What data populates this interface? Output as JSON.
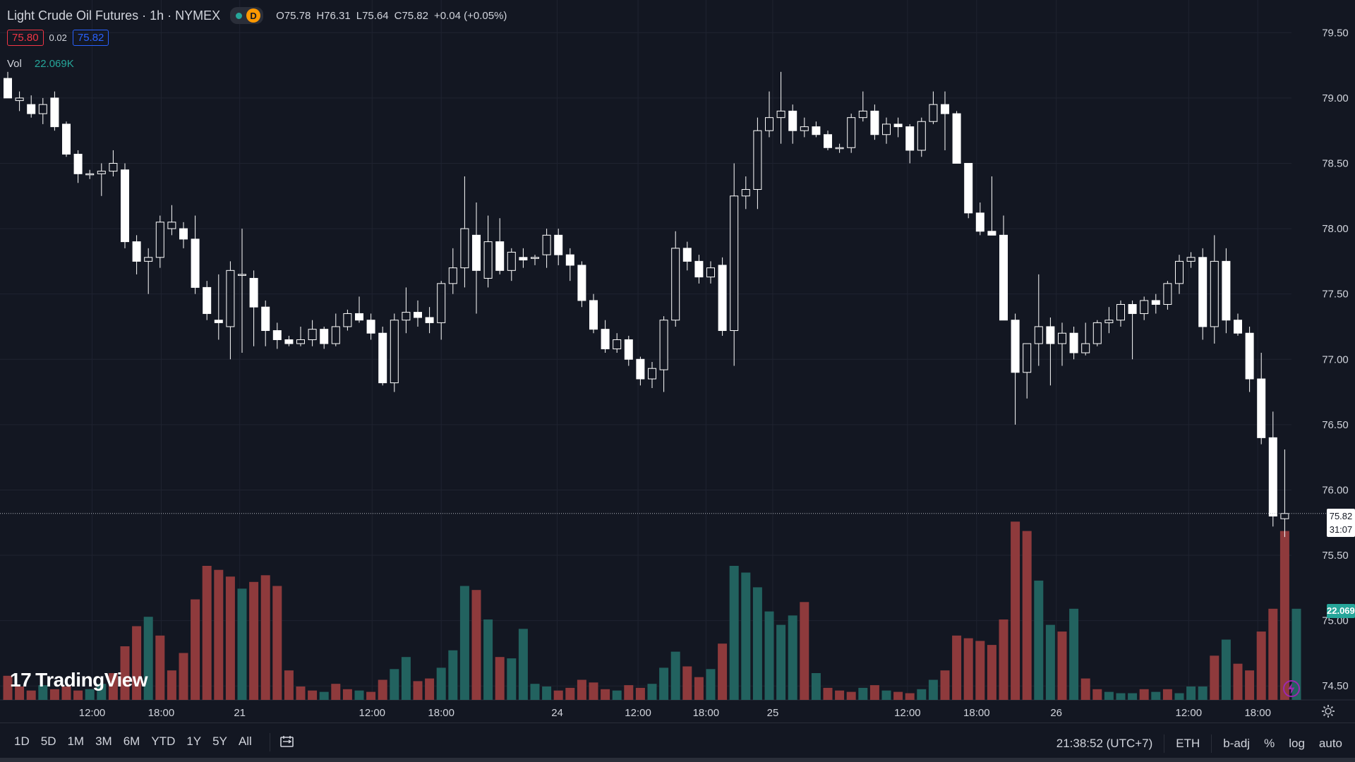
{
  "header": {
    "title": "Light Crude Oil Futures · 1h · NYMEX",
    "status_letter": "D",
    "ohlc": {
      "o_label": "O",
      "o": "75.78",
      "h_label": "H",
      "h": "76.31",
      "l_label": "L",
      "l": "75.64",
      "c_label": "C",
      "c": "75.82",
      "change": "+0.04 (+0.05%)"
    },
    "bid": "75.80",
    "spread": "0.02",
    "ask": "75.82",
    "vol_label": "Vol",
    "vol_value": "22.069K"
  },
  "colors": {
    "background": "#131722",
    "grid": "#1f2330",
    "up_candle": "#ffffff",
    "down_candle": "#ffffff",
    "vol_up": "#22625f",
    "vol_down": "#8e3a3c",
    "text": "#d1d4dc",
    "accent_teal": "#26a69a"
  },
  "logo": {
    "text": "TradingView",
    "mark": "17"
  },
  "price_tag": {
    "price": "75.82",
    "countdown": "31:07"
  },
  "volume_tag": "22.069K",
  "bottom_bar": {
    "ranges": [
      "1D",
      "5D",
      "1M",
      "3M",
      "6M",
      "YTD",
      "1Y",
      "5Y",
      "All"
    ],
    "time": "21:38:52 (UTC+7)",
    "session": "ETH",
    "badj": "b-adj",
    "percent": "%",
    "log": "log",
    "auto": "auto"
  },
  "chart_data": {
    "type": "candlestick",
    "title": "Light Crude Oil Futures · 1h · NYMEX",
    "y_axis_ticks": [
      "79.50",
      "79.00",
      "78.50",
      "78.00",
      "77.50",
      "77.00",
      "76.50",
      "76.00",
      "75.50",
      "75.00",
      "74.50"
    ],
    "ylim": [
      74.35,
      79.75
    ],
    "x_axis_ticks": [
      "12:00",
      "18:00",
      "21",
      "12:00",
      "18:00",
      "24",
      "12:00",
      "18:00",
      "25",
      "12:00",
      "18:00",
      "26",
      "12:00",
      "18:00"
    ],
    "x_tick_bar_index": [
      7.2,
      13.1,
      19.8,
      31.1,
      37.0,
      46.9,
      53.8,
      59.6,
      65.3,
      76.8,
      82.7,
      89.5,
      100.8,
      106.7
    ],
    "last_price": 75.82,
    "grid": true,
    "candles": [
      {
        "o": 79.15,
        "h": 79.2,
        "l": 79.0,
        "c": 79.0
      },
      {
        "o": 78.98,
        "h": 79.05,
        "l": 78.9,
        "c": 79.0
      },
      {
        "o": 78.95,
        "h": 79.02,
        "l": 78.85,
        "c": 78.88
      },
      {
        "o": 78.88,
        "h": 79.0,
        "l": 78.8,
        "c": 78.95
      },
      {
        "o": 79.0,
        "h": 79.05,
        "l": 78.75,
        "c": 78.78
      },
      {
        "o": 78.8,
        "h": 78.82,
        "l": 78.55,
        "c": 78.57
      },
      {
        "o": 78.57,
        "h": 78.6,
        "l": 78.35,
        "c": 78.42
      },
      {
        "o": 78.42,
        "h": 78.45,
        "l": 78.38,
        "c": 78.42
      },
      {
        "o": 78.42,
        "h": 78.5,
        "l": 78.25,
        "c": 78.44
      },
      {
        "o": 78.44,
        "h": 78.6,
        "l": 78.4,
        "c": 78.5
      },
      {
        "o": 78.45,
        "h": 78.5,
        "l": 77.85,
        "c": 77.9
      },
      {
        "o": 77.9,
        "h": 77.95,
        "l": 77.65,
        "c": 77.75
      },
      {
        "o": 77.75,
        "h": 77.85,
        "l": 77.5,
        "c": 77.78
      },
      {
        "o": 77.78,
        "h": 78.1,
        "l": 77.7,
        "c": 78.05
      },
      {
        "o": 78.0,
        "h": 78.18,
        "l": 77.95,
        "c": 78.05
      },
      {
        "o": 78.0,
        "h": 78.05,
        "l": 77.85,
        "c": 77.92
      },
      {
        "o": 77.92,
        "h": 78.1,
        "l": 77.5,
        "c": 77.55
      },
      {
        "o": 77.55,
        "h": 77.6,
        "l": 77.3,
        "c": 77.35
      },
      {
        "o": 77.3,
        "h": 77.65,
        "l": 77.15,
        "c": 77.28
      },
      {
        "o": 77.25,
        "h": 77.75,
        "l": 77.0,
        "c": 77.68
      },
      {
        "o": 77.65,
        "h": 78.0,
        "l": 77.05,
        "c": 77.65
      },
      {
        "o": 77.62,
        "h": 77.68,
        "l": 77.1,
        "c": 77.4
      },
      {
        "o": 77.4,
        "h": 77.45,
        "l": 77.1,
        "c": 77.22
      },
      {
        "o": 77.22,
        "h": 77.28,
        "l": 77.08,
        "c": 77.15
      },
      {
        "o": 77.15,
        "h": 77.18,
        "l": 77.1,
        "c": 77.12
      },
      {
        "o": 77.12,
        "h": 77.25,
        "l": 77.1,
        "c": 77.15
      },
      {
        "o": 77.15,
        "h": 77.3,
        "l": 77.1,
        "c": 77.23
      },
      {
        "o": 77.23,
        "h": 77.25,
        "l": 77.08,
        "c": 77.12
      },
      {
        "o": 77.12,
        "h": 77.35,
        "l": 77.1,
        "c": 77.25
      },
      {
        "o": 77.25,
        "h": 77.38,
        "l": 77.22,
        "c": 77.35
      },
      {
        "o": 77.35,
        "h": 77.48,
        "l": 77.28,
        "c": 77.3
      },
      {
        "o": 77.3,
        "h": 77.35,
        "l": 77.15,
        "c": 77.2
      },
      {
        "o": 77.2,
        "h": 77.25,
        "l": 76.8,
        "c": 76.82
      },
      {
        "o": 76.82,
        "h": 77.35,
        "l": 76.75,
        "c": 77.3
      },
      {
        "o": 77.3,
        "h": 77.55,
        "l": 77.2,
        "c": 77.36
      },
      {
        "o": 77.36,
        "h": 77.45,
        "l": 77.25,
        "c": 77.32
      },
      {
        "o": 77.32,
        "h": 77.4,
        "l": 77.2,
        "c": 77.28
      },
      {
        "o": 77.28,
        "h": 77.6,
        "l": 77.15,
        "c": 77.58
      },
      {
        "o": 77.58,
        "h": 77.85,
        "l": 77.5,
        "c": 77.7
      },
      {
        "o": 77.7,
        "h": 78.4,
        "l": 77.55,
        "c": 78.0
      },
      {
        "o": 77.95,
        "h": 78.2,
        "l": 77.35,
        "c": 77.68
      },
      {
        "o": 77.62,
        "h": 78.1,
        "l": 77.55,
        "c": 77.9
      },
      {
        "o": 77.9,
        "h": 78.08,
        "l": 77.65,
        "c": 77.68
      },
      {
        "o": 77.68,
        "h": 77.85,
        "l": 77.6,
        "c": 77.82
      },
      {
        "o": 77.78,
        "h": 77.85,
        "l": 77.7,
        "c": 77.76
      },
      {
        "o": 77.78,
        "h": 77.8,
        "l": 77.72,
        "c": 77.78
      },
      {
        "o": 77.8,
        "h": 78.0,
        "l": 77.7,
        "c": 77.95
      },
      {
        "o": 77.95,
        "h": 78.0,
        "l": 77.72,
        "c": 77.8
      },
      {
        "o": 77.8,
        "h": 77.85,
        "l": 77.6,
        "c": 77.72
      },
      {
        "o": 77.72,
        "h": 77.75,
        "l": 77.4,
        "c": 77.45
      },
      {
        "o": 77.45,
        "h": 77.5,
        "l": 77.2,
        "c": 77.23
      },
      {
        "o": 77.23,
        "h": 77.3,
        "l": 77.05,
        "c": 77.08
      },
      {
        "o": 77.08,
        "h": 77.2,
        "l": 77.05,
        "c": 77.15
      },
      {
        "o": 77.15,
        "h": 77.18,
        "l": 76.95,
        "c": 77.0
      },
      {
        "o": 77.0,
        "h": 77.02,
        "l": 76.8,
        "c": 76.85
      },
      {
        "o": 76.85,
        "h": 76.98,
        "l": 76.78,
        "c": 76.93
      },
      {
        "o": 76.92,
        "h": 77.33,
        "l": 76.75,
        "c": 77.3
      },
      {
        "o": 77.3,
        "h": 77.98,
        "l": 77.25,
        "c": 77.85
      },
      {
        "o": 77.85,
        "h": 77.9,
        "l": 77.68,
        "c": 77.75
      },
      {
        "o": 77.75,
        "h": 77.8,
        "l": 77.58,
        "c": 77.63
      },
      {
        "o": 77.63,
        "h": 77.75,
        "l": 77.58,
        "c": 77.7
      },
      {
        "o": 77.72,
        "h": 77.78,
        "l": 77.18,
        "c": 77.22
      },
      {
        "o": 77.22,
        "h": 78.5,
        "l": 76.95,
        "c": 78.25
      },
      {
        "o": 78.25,
        "h": 78.4,
        "l": 78.15,
        "c": 78.3
      },
      {
        "o": 78.3,
        "h": 78.85,
        "l": 78.15,
        "c": 78.75
      },
      {
        "o": 78.75,
        "h": 79.05,
        "l": 78.7,
        "c": 78.85
      },
      {
        "o": 78.85,
        "h": 79.2,
        "l": 78.65,
        "c": 78.9
      },
      {
        "o": 78.9,
        "h": 78.95,
        "l": 78.65,
        "c": 78.75
      },
      {
        "o": 78.75,
        "h": 78.85,
        "l": 78.7,
        "c": 78.78
      },
      {
        "o": 78.78,
        "h": 78.82,
        "l": 78.7,
        "c": 78.72
      },
      {
        "o": 78.72,
        "h": 78.75,
        "l": 78.6,
        "c": 78.62
      },
      {
        "o": 78.62,
        "h": 78.65,
        "l": 78.58,
        "c": 78.62
      },
      {
        "o": 78.62,
        "h": 78.88,
        "l": 78.58,
        "c": 78.85
      },
      {
        "o": 78.85,
        "h": 79.05,
        "l": 78.82,
        "c": 78.9
      },
      {
        "o": 78.9,
        "h": 78.95,
        "l": 78.68,
        "c": 78.72
      },
      {
        "o": 78.72,
        "h": 78.85,
        "l": 78.65,
        "c": 78.8
      },
      {
        "o": 78.8,
        "h": 78.85,
        "l": 78.7,
        "c": 78.78
      },
      {
        "o": 78.78,
        "h": 78.8,
        "l": 78.5,
        "c": 78.6
      },
      {
        "o": 78.6,
        "h": 78.85,
        "l": 78.55,
        "c": 78.82
      },
      {
        "o": 78.82,
        "h": 79.05,
        "l": 78.8,
        "c": 78.95
      },
      {
        "o": 78.95,
        "h": 79.05,
        "l": 78.6,
        "c": 78.88
      },
      {
        "o": 78.88,
        "h": 78.9,
        "l": 78.5,
        "c": 78.5
      },
      {
        "o": 78.5,
        "h": 78.5,
        "l": 78.08,
        "c": 78.12
      },
      {
        "o": 78.12,
        "h": 78.2,
        "l": 77.95,
        "c": 77.98
      },
      {
        "o": 77.98,
        "h": 78.4,
        "l": 77.95,
        "c": 77.95
      },
      {
        "o": 77.95,
        "h": 78.1,
        "l": 77.3,
        "c": 77.3
      },
      {
        "o": 77.3,
        "h": 77.35,
        "l": 76.5,
        "c": 76.9
      },
      {
        "o": 76.9,
        "h": 77.1,
        "l": 76.7,
        "c": 77.12
      },
      {
        "o": 77.12,
        "h": 77.65,
        "l": 76.95,
        "c": 77.25
      },
      {
        "o": 77.25,
        "h": 77.32,
        "l": 76.8,
        "c": 77.12
      },
      {
        "o": 77.12,
        "h": 77.28,
        "l": 76.95,
        "c": 77.2
      },
      {
        "o": 77.2,
        "h": 77.25,
        "l": 77.0,
        "c": 77.05
      },
      {
        "o": 77.05,
        "h": 77.28,
        "l": 77.03,
        "c": 77.12
      },
      {
        "o": 77.12,
        "h": 77.3,
        "l": 77.1,
        "c": 77.28
      },
      {
        "o": 77.28,
        "h": 77.4,
        "l": 77.2,
        "c": 77.3
      },
      {
        "o": 77.3,
        "h": 77.45,
        "l": 77.25,
        "c": 77.42
      },
      {
        "o": 77.42,
        "h": 77.45,
        "l": 77.0,
        "c": 77.35
      },
      {
        "o": 77.35,
        "h": 77.48,
        "l": 77.3,
        "c": 77.45
      },
      {
        "o": 77.45,
        "h": 77.5,
        "l": 77.35,
        "c": 77.42
      },
      {
        "o": 77.42,
        "h": 77.6,
        "l": 77.38,
        "c": 77.58
      },
      {
        "o": 77.58,
        "h": 77.8,
        "l": 77.5,
        "c": 77.75
      },
      {
        "o": 77.75,
        "h": 77.82,
        "l": 77.7,
        "c": 77.78
      },
      {
        "o": 77.78,
        "h": 77.85,
        "l": 77.15,
        "c": 77.25
      },
      {
        "o": 77.25,
        "h": 77.95,
        "l": 77.12,
        "c": 77.75
      },
      {
        "o": 77.75,
        "h": 77.85,
        "l": 77.2,
        "c": 77.3
      },
      {
        "o": 77.3,
        "h": 77.35,
        "l": 77.18,
        "c": 77.2
      },
      {
        "o": 77.2,
        "h": 77.25,
        "l": 76.75,
        "c": 76.85
      },
      {
        "o": 76.85,
        "h": 77.05,
        "l": 76.35,
        "c": 76.4
      },
      {
        "o": 76.4,
        "h": 76.6,
        "l": 75.72,
        "c": 75.8
      },
      {
        "o": 75.78,
        "h": 76.31,
        "l": 75.64,
        "c": 75.82
      }
    ],
    "volume_label": "Vol",
    "volume_max": 22.0,
    "volume": [
      0.18,
      0.1,
      0.07,
      0.11,
      0.08,
      0.1,
      0.07,
      0.08,
      0.12,
      0.2,
      0.4,
      0.55,
      0.62,
      0.48,
      0.22,
      0.35,
      0.75,
      1.0,
      0.97,
      0.92,
      0.83,
      0.88,
      0.93,
      0.85,
      0.22,
      0.1,
      0.07,
      0.06,
      0.12,
      0.08,
      0.07,
      0.06,
      0.15,
      0.23,
      0.32,
      0.14,
      0.16,
      0.24,
      0.37,
      0.85,
      0.82,
      0.6,
      0.32,
      0.31,
      0.53,
      0.12,
      0.1,
      0.07,
      0.09,
      0.15,
      0.13,
      0.08,
      0.07,
      0.11,
      0.09,
      0.12,
      0.24,
      0.36,
      0.25,
      0.17,
      0.23,
      0.42,
      1.0,
      0.95,
      0.84,
      0.66,
      0.56,
      0.63,
      0.73,
      0.2,
      0.09,
      0.07,
      0.06,
      0.09,
      0.11,
      0.07,
      0.06,
      0.05,
      0.08,
      0.15,
      0.22,
      0.48,
      0.46,
      0.44,
      0.41,
      0.6,
      1.33,
      1.26,
      0.89,
      0.56,
      0.51,
      0.68,
      0.16,
      0.08,
      0.06,
      0.05,
      0.05,
      0.08,
      0.06,
      0.08,
      0.05,
      0.1,
      0.1,
      0.33,
      0.45,
      0.27,
      0.22,
      0.51,
      0.68,
      1.26,
      0.68
    ],
    "volume_up": [
      false,
      false,
      false,
      true,
      false,
      false,
      false,
      true,
      true,
      false,
      false,
      false,
      true,
      false,
      false,
      false,
      false,
      false,
      false,
      false,
      true,
      false,
      false,
      false,
      false,
      false,
      false,
      true,
      false,
      false,
      true,
      false,
      false,
      true,
      true,
      false,
      false,
      true,
      true,
      true,
      false,
      true,
      false,
      true,
      true,
      true,
      true,
      false,
      false,
      false,
      false,
      false,
      true,
      false,
      false,
      true,
      true,
      true,
      false,
      false,
      true,
      false,
      true,
      true,
      true,
      true,
      true,
      true,
      false,
      true,
      false,
      false,
      false,
      true,
      false,
      true,
      false,
      false,
      true,
      true,
      false,
      false,
      false,
      false,
      false,
      false,
      false,
      false,
      true,
      true,
      false,
      true,
      false,
      false,
      true,
      true,
      true,
      false,
      true,
      false,
      true,
      true,
      true,
      false,
      true,
      false,
      false,
      false,
      false,
      false,
      true
    ]
  }
}
